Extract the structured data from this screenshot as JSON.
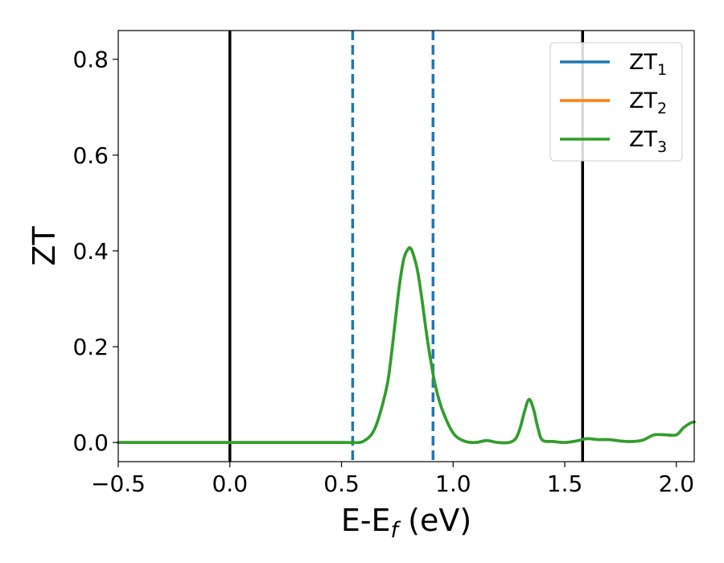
{
  "chart_data": {
    "type": "line",
    "title": "",
    "xlabel": {
      "main": "E-E",
      "sub": "f",
      "unit": " (eV)"
    },
    "ylabel": "ZT",
    "xlim": [
      -0.5,
      2.08
    ],
    "ylim": [
      -0.04,
      0.86
    ],
    "x_ticks": [
      -0.5,
      0.0,
      0.5,
      1.0,
      1.5,
      2.0
    ],
    "x_tick_labels": [
      "−0.5",
      "0.0",
      "0.5",
      "1.0",
      "1.5",
      "2.0"
    ],
    "y_ticks": [
      0.0,
      0.2,
      0.4,
      0.6,
      0.8
    ],
    "y_tick_labels": [
      "0.0",
      "0.2",
      "0.4",
      "0.6",
      "0.8"
    ],
    "grid": false,
    "legend_position": "top-right",
    "vlines": [
      {
        "x": 0.0,
        "style": "solid",
        "color": "#000000"
      },
      {
        "x": 1.58,
        "style": "solid",
        "color": "#000000"
      },
      {
        "x": 0.55,
        "style": "dashed",
        "color": "#1f77b4"
      },
      {
        "x": 0.91,
        "style": "dashed",
        "color": "#1f77b4"
      }
    ],
    "x": [
      -0.5,
      0.0,
      0.5,
      0.55,
      0.6,
      0.65,
      0.7,
      0.72,
      0.74,
      0.76,
      0.78,
      0.8,
      0.81,
      0.82,
      0.84,
      0.86,
      0.88,
      0.9,
      0.92,
      0.95,
      1.0,
      1.05,
      1.1,
      1.15,
      1.2,
      1.25,
      1.28,
      1.3,
      1.32,
      1.34,
      1.36,
      1.38,
      1.4,
      1.45,
      1.5,
      1.55,
      1.6,
      1.65,
      1.7,
      1.75,
      1.8,
      1.85,
      1.9,
      1.95,
      2.0,
      2.03,
      2.06,
      2.08
    ],
    "series": [
      {
        "name": "ZT",
        "sub": "1",
        "color": "#1f77b4",
        "values": [
          0.0,
          0.0,
          0.0,
          0.0,
          0.003,
          0.03,
          0.11,
          0.17,
          0.25,
          0.33,
          0.385,
          0.405,
          0.405,
          0.395,
          0.36,
          0.3,
          0.23,
          0.17,
          0.12,
          0.07,
          0.02,
          0.003,
          0.0,
          0.004,
          0.0,
          0.0,
          0.008,
          0.03,
          0.065,
          0.09,
          0.07,
          0.03,
          0.005,
          0.002,
          0.0,
          0.003,
          0.008,
          0.006,
          0.006,
          0.003,
          0.002,
          0.005,
          0.016,
          0.016,
          0.016,
          0.03,
          0.04,
          0.043
        ]
      },
      {
        "name": "ZT",
        "sub": "2",
        "color": "#ff7f0e",
        "values": [
          0.0,
          0.0,
          0.0,
          0.0,
          0.003,
          0.03,
          0.11,
          0.17,
          0.25,
          0.33,
          0.385,
          0.405,
          0.405,
          0.395,
          0.36,
          0.3,
          0.23,
          0.17,
          0.12,
          0.07,
          0.02,
          0.003,
          0.0,
          0.004,
          0.0,
          0.0,
          0.008,
          0.03,
          0.065,
          0.09,
          0.07,
          0.03,
          0.005,
          0.002,
          0.0,
          0.003,
          0.008,
          0.006,
          0.006,
          0.003,
          0.002,
          0.005,
          0.016,
          0.016,
          0.016,
          0.03,
          0.04,
          0.043
        ]
      },
      {
        "name": "ZT",
        "sub": "3",
        "color": "#2ca02c",
        "values": [
          0.0,
          0.0,
          0.0,
          0.0,
          0.003,
          0.03,
          0.11,
          0.17,
          0.25,
          0.33,
          0.385,
          0.405,
          0.405,
          0.395,
          0.36,
          0.3,
          0.23,
          0.17,
          0.12,
          0.07,
          0.02,
          0.003,
          0.0,
          0.004,
          0.0,
          0.0,
          0.008,
          0.03,
          0.065,
          0.09,
          0.07,
          0.03,
          0.005,
          0.002,
          0.0,
          0.003,
          0.008,
          0.006,
          0.006,
          0.003,
          0.002,
          0.005,
          0.016,
          0.016,
          0.016,
          0.03,
          0.04,
          0.043
        ]
      }
    ]
  }
}
